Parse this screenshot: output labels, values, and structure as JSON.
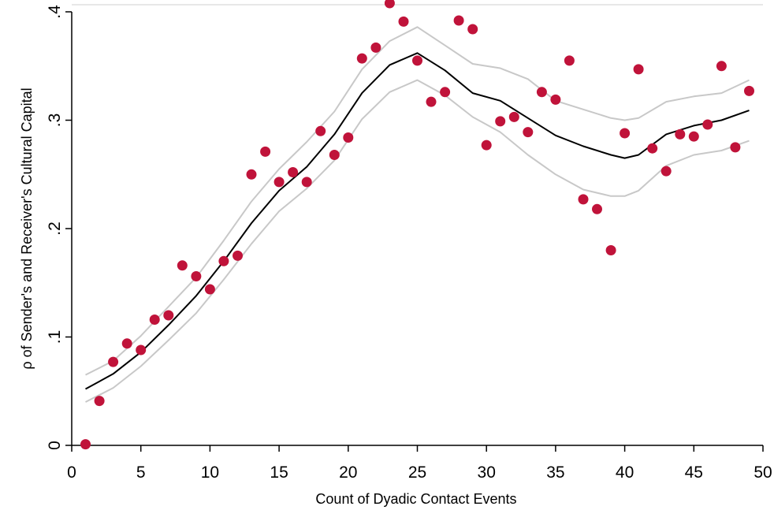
{
  "chart_data": {
    "type": "scatter",
    "xlabel": "Count of Dyadic Contact Events",
    "ylabel": "ρ of Sender's and Receiver's Cultural Capital",
    "xlim": [
      0,
      50
    ],
    "ylim": [
      0,
      0.4
    ],
    "xticks": [
      0,
      5,
      10,
      15,
      20,
      25,
      30,
      35,
      40,
      45,
      50
    ],
    "xtick_labels": [
      "0",
      "5",
      "10",
      "15",
      "20",
      "25",
      "30",
      "35",
      "40",
      "45",
      "50"
    ],
    "yticks": [
      0,
      0.1,
      0.2,
      0.3,
      0.4
    ],
    "ytick_labels": [
      "0",
      ".1",
      ".2",
      ".3",
      ".4"
    ],
    "grid": false,
    "colors": {
      "points": "#c0133a",
      "fit": "#000000",
      "ci": "#c8c8c8",
      "axis": "#000000"
    },
    "series": [
      {
        "kind": "points",
        "x": [
          1,
          2,
          3,
          4,
          5,
          6,
          7,
          8,
          9,
          10,
          11,
          12,
          13,
          14,
          15,
          16,
          17,
          18,
          19,
          20,
          21,
          22,
          23,
          24,
          25,
          26,
          27,
          28,
          29,
          30,
          31,
          32,
          33,
          34,
          35,
          36,
          37,
          38,
          39,
          40,
          41,
          42,
          43,
          44,
          45,
          46,
          47,
          48,
          49
        ],
        "y": [
          0.001,
          0.041,
          0.077,
          0.094,
          0.088,
          0.116,
          0.12,
          0.166,
          0.156,
          0.144,
          0.17,
          0.175,
          0.25,
          0.271,
          0.243,
          0.252,
          0.243,
          0.29,
          0.268,
          0.284,
          0.357,
          0.367,
          0.408,
          0.391,
          0.355,
          0.317,
          0.326,
          0.392,
          0.384,
          0.277,
          0.299,
          0.303,
          0.289,
          0.326,
          0.319,
          0.355,
          0.227,
          0.218,
          0.18,
          0.288,
          0.347,
          0.274,
          0.253,
          0.287,
          0.285,
          0.296,
          0.35,
          0.275,
          0.327
        ]
      },
      {
        "kind": "fit",
        "x": [
          1,
          3,
          5,
          7,
          9,
          11,
          13,
          15,
          17,
          19,
          21,
          23,
          25,
          27,
          29,
          31,
          33,
          35,
          37,
          39,
          40,
          41,
          43,
          45,
          47,
          49
        ],
        "y": [
          0.052,
          0.066,
          0.086,
          0.111,
          0.138,
          0.17,
          0.205,
          0.235,
          0.257,
          0.287,
          0.325,
          0.351,
          0.362,
          0.346,
          0.325,
          0.318,
          0.302,
          0.286,
          0.276,
          0.268,
          0.265,
          0.268,
          0.287,
          0.295,
          0.3,
          0.309
        ]
      },
      {
        "kind": "ci_upper",
        "x": [
          1,
          3,
          5,
          7,
          9,
          11,
          13,
          15,
          17,
          19,
          21,
          23,
          25,
          27,
          29,
          31,
          33,
          35,
          37,
          39,
          40,
          41,
          43,
          45,
          47,
          49
        ],
        "y": [
          0.065,
          0.078,
          0.101,
          0.128,
          0.155,
          0.189,
          0.225,
          0.255,
          0.28,
          0.308,
          0.347,
          0.373,
          0.386,
          0.369,
          0.352,
          0.348,
          0.338,
          0.318,
          0.31,
          0.302,
          0.3,
          0.302,
          0.317,
          0.322,
          0.325,
          0.337
        ]
      },
      {
        "kind": "ci_lower",
        "x": [
          1,
          3,
          5,
          7,
          9,
          11,
          13,
          15,
          17,
          19,
          21,
          23,
          25,
          27,
          29,
          31,
          33,
          35,
          37,
          39,
          40,
          41,
          43,
          45,
          47,
          49
        ],
        "y": [
          0.04,
          0.053,
          0.073,
          0.097,
          0.122,
          0.153,
          0.186,
          0.216,
          0.237,
          0.263,
          0.301,
          0.326,
          0.337,
          0.323,
          0.303,
          0.289,
          0.268,
          0.25,
          0.236,
          0.23,
          0.23,
          0.235,
          0.258,
          0.268,
          0.272,
          0.281
        ]
      }
    ]
  }
}
